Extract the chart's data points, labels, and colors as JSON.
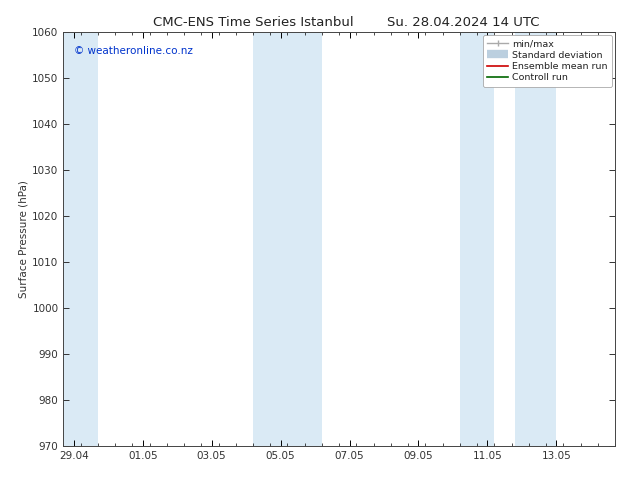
{
  "title": "CMC-ENS Time Series Istanbul",
  "title2": "Su. 28.04.2024 14 UTC",
  "ylabel": "Surface Pressure (hPa)",
  "watermark": "© weatheronline.co.nz",
  "watermark_color": "#0033cc",
  "ylim": [
    970,
    1060
  ],
  "yticks": [
    970,
    980,
    990,
    1000,
    1010,
    1020,
    1030,
    1040,
    1050,
    1060
  ],
  "xtick_labels": [
    "29.04",
    "01.05",
    "03.05",
    "05.05",
    "07.05",
    "09.05",
    "11.05",
    "13.05"
  ],
  "xtick_positions": [
    0,
    2,
    4,
    6,
    8,
    10,
    12,
    14
  ],
  "xlim": [
    -0.3,
    15.3
  ],
  "shaded_regions": [
    {
      "xmin": -0.3,
      "xmax": 0.7
    },
    {
      "xmin": 5.2,
      "xmax": 7.2
    },
    {
      "xmin": 11.2,
      "xmax": 12.2
    },
    {
      "xmin": 12.8,
      "xmax": 14.0
    }
  ],
  "shaded_color": "#daeaf5",
  "bg_color": "#ffffff",
  "font_color": "#222222",
  "tick_color": "#333333",
  "title_fontsize": 9.5,
  "label_fontsize": 7.5,
  "tick_fontsize": 7.5
}
